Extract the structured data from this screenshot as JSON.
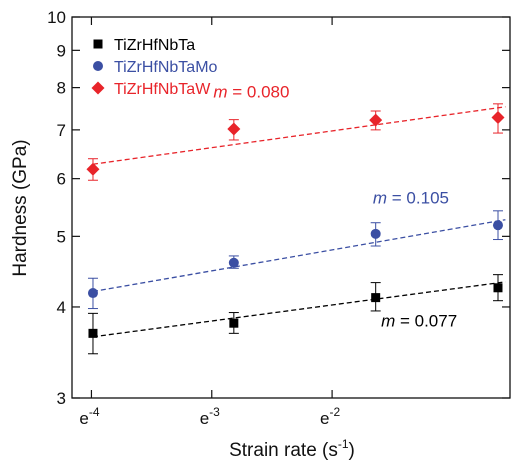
{
  "chart_data": {
    "type": "scatter",
    "xlabel": "Strain rate (s",
    "xlabel_sup": "-1",
    "xlabel_end": ")",
    "ylabel": "Hardness (GPa)",
    "x_scale": "natural-log",
    "y_scale": "log",
    "xlim": [
      0.000105,
      0.004
    ],
    "ylim": [
      3,
      10
    ],
    "x_ticks": [
      {
        "value": 0.00012341,
        "base": "e",
        "exp": "-4"
      },
      {
        "value": 0.00033546,
        "base": "e",
        "exp": "-3"
      },
      {
        "value": 0.00091188,
        "base": "e",
        "exp": "-2"
      }
    ],
    "y_ticks": [
      {
        "value": 3,
        "label": "3"
      },
      {
        "value": 4,
        "label": "4"
      },
      {
        "value": 5,
        "label": "5"
      },
      {
        "value": 6,
        "label": "6"
      },
      {
        "value": 7,
        "label": "7"
      },
      {
        "value": 8,
        "label": "8"
      },
      {
        "value": 9,
        "label": "9"
      },
      {
        "value": 10,
        "label": "10"
      }
    ],
    "legend_position": "top-left",
    "series": [
      {
        "name": "TiZrHfNbTa",
        "color": "#000000",
        "marker": "square",
        "x": [
          0.000125,
          0.000403,
          0.00131,
          0.00362
        ],
        "y": [
          3.68,
          3.8,
          4.12,
          4.25
        ],
        "yerr_low": [
          3.45,
          3.68,
          3.95,
          4.08
        ],
        "yerr_high": [
          3.92,
          3.93,
          4.32,
          4.43
        ],
        "fit": {
          "label_prefix": "m",
          "label_value": " = 0.077",
          "slope": 0.077,
          "x": [
            0.000125,
            0.00385
          ],
          "y": [
            3.64,
            4.33
          ]
        },
        "label_pos": [
          0.00137,
          3.76
        ]
      },
      {
        "name": "TiZrHfNbTaMo",
        "color": "#3b4fa3",
        "marker": "circle",
        "x": [
          0.000125,
          0.000403,
          0.00131,
          0.00362
        ],
        "y": [
          4.18,
          4.6,
          5.04,
          5.18
        ],
        "yerr_low": [
          3.98,
          4.52,
          4.85,
          4.95
        ],
        "yerr_high": [
          4.38,
          4.7,
          5.22,
          5.42
        ],
        "fit": {
          "label_prefix": "m",
          "label_value": " = 0.105",
          "slope": 0.105,
          "x": [
            0.000125,
            0.00385
          ],
          "y": [
            4.2,
            5.27
          ]
        },
        "label_pos": [
          0.00128,
          5.55
        ]
      },
      {
        "name": "TiZrHfNbTaW",
        "color": "#e8242a",
        "marker": "diamond",
        "x": [
          0.000125,
          0.000403,
          0.00131,
          0.00362
        ],
        "y": [
          6.18,
          7.02,
          7.22,
          7.28
        ],
        "yerr_low": [
          5.97,
          6.78,
          7.0,
          6.93
        ],
        "yerr_high": [
          6.39,
          7.23,
          7.43,
          7.6
        ],
        "fit": {
          "label_prefix": "m",
          "label_value": " = 0.080",
          "slope": 0.08,
          "x": [
            0.000125,
            0.00385
          ],
          "y": [
            6.28,
            7.53
          ]
        },
        "label_pos": [
          0.00034,
          7.75
        ]
      }
    ]
  }
}
